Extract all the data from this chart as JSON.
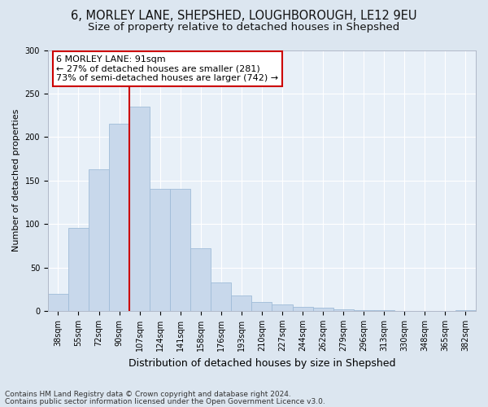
{
  "title1": "6, MORLEY LANE, SHEPSHED, LOUGHBOROUGH, LE12 9EU",
  "title2": "Size of property relative to detached houses in Shepshed",
  "xlabel": "Distribution of detached houses by size in Shepshed",
  "ylabel": "Number of detached properties",
  "categories": [
    "38sqm",
    "55sqm",
    "72sqm",
    "90sqm",
    "107sqm",
    "124sqm",
    "141sqm",
    "158sqm",
    "176sqm",
    "193sqm",
    "210sqm",
    "227sqm",
    "244sqm",
    "262sqm",
    "279sqm",
    "296sqm",
    "313sqm",
    "330sqm",
    "348sqm",
    "365sqm",
    "382sqm"
  ],
  "bar_heights": [
    20,
    95,
    163,
    215,
    235,
    140,
    140,
    72,
    33,
    18,
    10,
    7,
    5,
    4,
    2,
    1,
    1,
    0,
    0,
    0,
    1
  ],
  "bar_color": "#c8d8eb",
  "bar_edge_color": "#a0bcd8",
  "vline_x": 3.5,
  "vline_color": "#cc0000",
  "annotation_line1": "6 MORLEY LANE: 91sqm",
  "annotation_line2": "← 27% of detached houses are smaller (281)",
  "annotation_line3": "73% of semi-detached houses are larger (742) →",
  "annotation_box_facecolor": "#ffffff",
  "annotation_box_edgecolor": "#cc0000",
  "ylim": [
    0,
    300
  ],
  "yticks": [
    0,
    50,
    100,
    150,
    200,
    250,
    300
  ],
  "footer1": "Contains HM Land Registry data © Crown copyright and database right 2024.",
  "footer2": "Contains public sector information licensed under the Open Government Licence v3.0.",
  "bg_color": "#dce6f0",
  "plot_bg_color": "#e8f0f8",
  "title1_fontsize": 10.5,
  "title2_fontsize": 9.5,
  "xlabel_fontsize": 9,
  "ylabel_fontsize": 8,
  "tick_fontsize": 7,
  "footer_fontsize": 6.5,
  "annotation_fontsize": 8
}
